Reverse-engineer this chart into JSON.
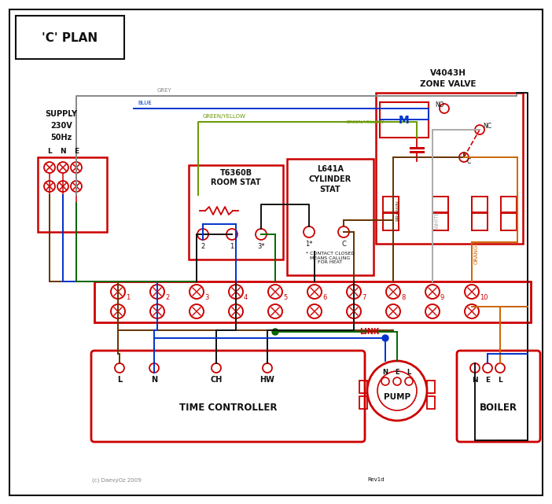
{
  "bg": "#ffffff",
  "red": "#cc0000",
  "blue": "#0033cc",
  "green": "#006600",
  "grey": "#888888",
  "brown": "#663300",
  "black": "#111111",
  "orange": "#cc6600",
  "gy": "#669900",
  "white_wire": "#aaaaaa",
  "title": "'C' PLAN",
  "zone_valve_line1": "V4043H",
  "zone_valve_line2": "ZONE VALVE",
  "room_stat_line1": "T6360B",
  "room_stat_line2": "ROOM STAT",
  "cyl_stat_line1": "L641A",
  "cyl_stat_line2": "CYLINDER",
  "cyl_stat_line3": "STAT",
  "contact_note": "* CONTACT CLOSED\nMEANS CALLING\nFOR HEAT",
  "tc_label": "TIME CONTROLLER",
  "pump_label": "PUMP",
  "boiler_label": "BOILER",
  "copyright": "(c) DaevyOz 2009",
  "rev": "Rev1d"
}
